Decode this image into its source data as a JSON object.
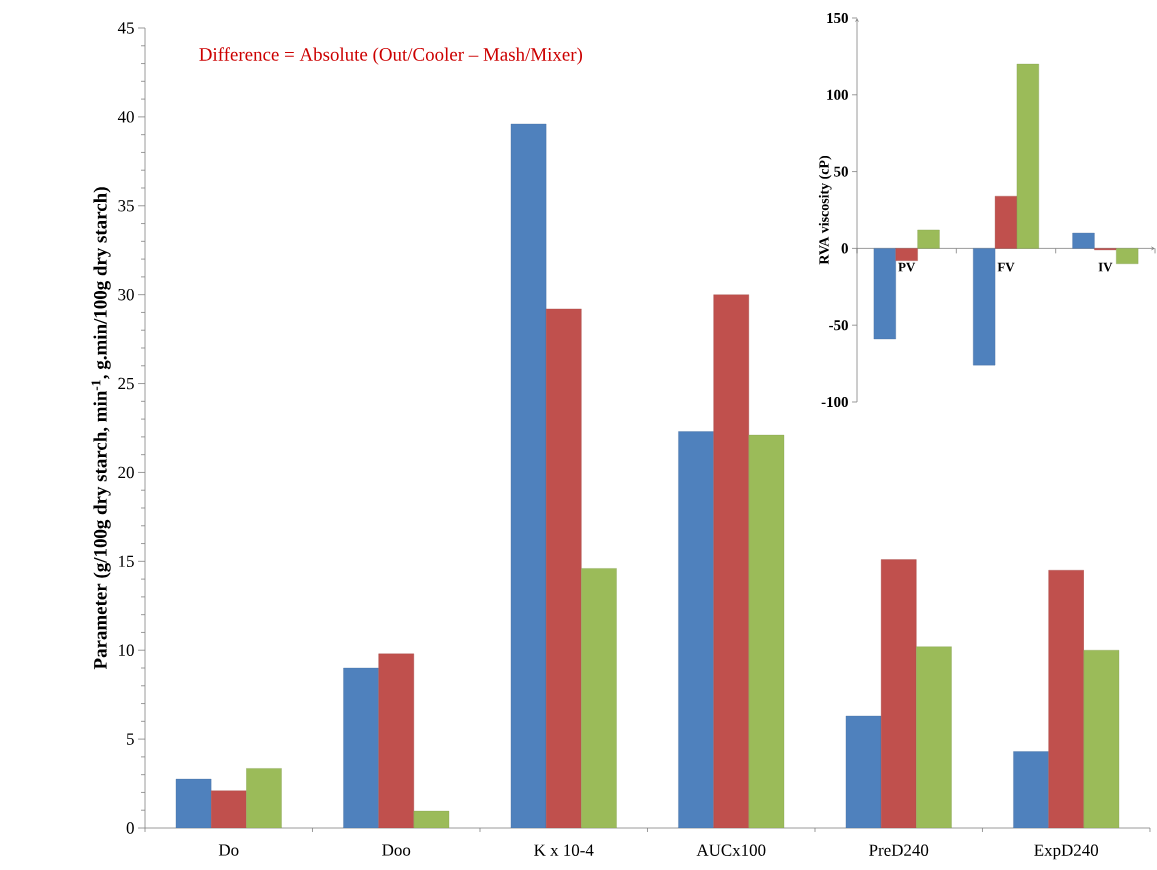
{
  "chart_data": [
    {
      "type": "bar",
      "ylabel": "Parameter (g/100g dry starch, min$^{-1}$, g.min/100g dry starch)",
      "categories": [
        "Do",
        "Doo",
        "K x 10-4",
        "AUCx100",
        "PreD240",
        "ExpD240"
      ],
      "series": [
        {
          "color": "#4f81bd",
          "values": [
            2.75,
            9.0,
            39.6,
            22.3,
            6.3,
            4.3
          ]
        },
        {
          "color": "#c0504d",
          "values": [
            2.1,
            9.8,
            29.2,
            30.0,
            15.1,
            14.5
          ]
        },
        {
          "color": "#9bbb59",
          "values": [
            3.35,
            0.95,
            14.6,
            22.1,
            10.2,
            10.0
          ]
        }
      ],
      "ylim": [
        0,
        45
      ],
      "yticks": [
        0,
        5,
        10,
        15,
        20,
        25,
        30,
        35,
        40,
        45
      ],
      "annotations": [
        "Difference  = Absolute (Out/Cooler – Mash/Mixer)"
      ]
    },
    {
      "type": "bar",
      "ylabel": "RVA viscosity (cP)",
      "categories": [
        "PV",
        "FV",
        "IV"
      ],
      "series": [
        {
          "color": "#4f81bd",
          "values": [
            -59,
            -76,
            10
          ]
        },
        {
          "color": "#c0504d",
          "values": [
            -8,
            34,
            -1
          ]
        },
        {
          "color": "#9bbb59",
          "values": [
            12,
            120,
            -10
          ]
        }
      ],
      "ylim": [
        -100,
        150
      ],
      "yticks": [
        -100,
        -50,
        0,
        50,
        100,
        150
      ]
    }
  ]
}
